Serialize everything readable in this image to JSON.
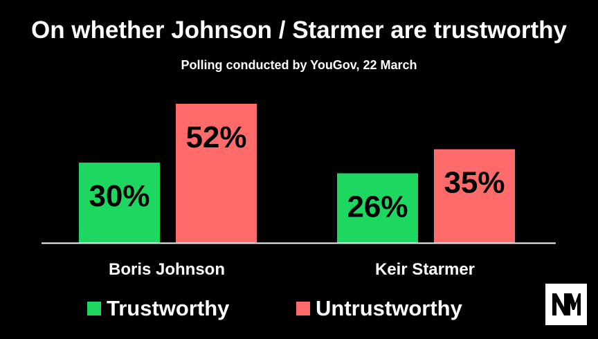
{
  "chart_data": {
    "type": "bar",
    "title": "On whether Johnson / Starmer are trustworthy",
    "subtitle": "Polling conducted by YouGov, 22 March",
    "categories": [
      "Boris Johnson",
      "Keir Starmer"
    ],
    "series": [
      {
        "name": "Trustworthy",
        "values": [
          30,
          26
        ],
        "labels": [
          "30%",
          "26%"
        ],
        "color": "#1ed760"
      },
      {
        "name": "Untrustworthy",
        "values": [
          52,
          35
        ],
        "labels": [
          "52%",
          "35%"
        ],
        "color": "#ff6b6b"
      }
    ],
    "unit": "%",
    "ylim": [
      0,
      52
    ],
    "grid": false,
    "legend_position": "bottom"
  },
  "branding": {
    "logo": "NM",
    "logo_icon": "nm-logo-icon"
  }
}
